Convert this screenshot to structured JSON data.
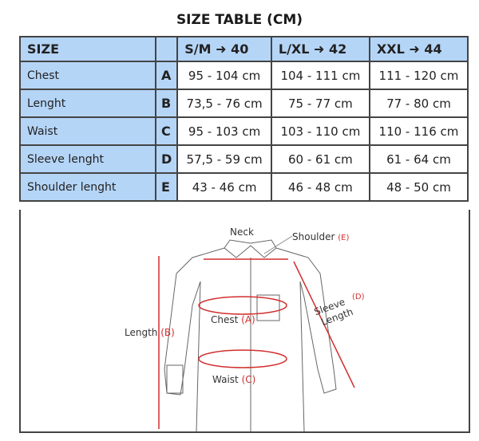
{
  "title": "SIZE TABLE (CM)",
  "header": {
    "size": "SIZE",
    "letter": "",
    "cols": [
      "S/M ➜ 40",
      "L/XL ➜ 42",
      "XXL ➜ 44"
    ]
  },
  "rows": [
    {
      "label": "Chest",
      "letter": "A",
      "values": [
        "95 - 104 cm",
        "104 - 111 cm",
        "111 - 120 cm"
      ]
    },
    {
      "label": "Lenght",
      "letter": "B",
      "values": [
        "73,5 - 76 cm",
        "75 - 77 cm",
        "77 - 80 cm"
      ]
    },
    {
      "label": "Waist",
      "letter": "C",
      "values": [
        "95 - 103 cm",
        "103 - 110 cm",
        "110 - 116 cm"
      ]
    },
    {
      "label": "Sleeve lenght",
      "letter": "D",
      "values": [
        "57,5 - 59 cm",
        "60 - 61 cm",
        "61 - 64 cm"
      ]
    },
    {
      "label": "Shoulder lenght",
      "letter": "E",
      "values": [
        "43 - 46 cm",
        "46 - 48 cm",
        "48 - 50 cm"
      ]
    }
  ],
  "diagram": {
    "neck": "Neck",
    "shoulder": "Shoulder",
    "shoulder_code": "(E)",
    "chest": "Chest",
    "chest_code": "(A)",
    "length": "Length",
    "length_code": "(B)",
    "waist": "Waist",
    "waist_code": "(C)",
    "sleeve1": "Sleeve",
    "sleeve2": "Length",
    "sleeve_code": "(D)"
  },
  "colors": {
    "header_bg": "#b5d5f7",
    "accent": "#d32f2f"
  }
}
